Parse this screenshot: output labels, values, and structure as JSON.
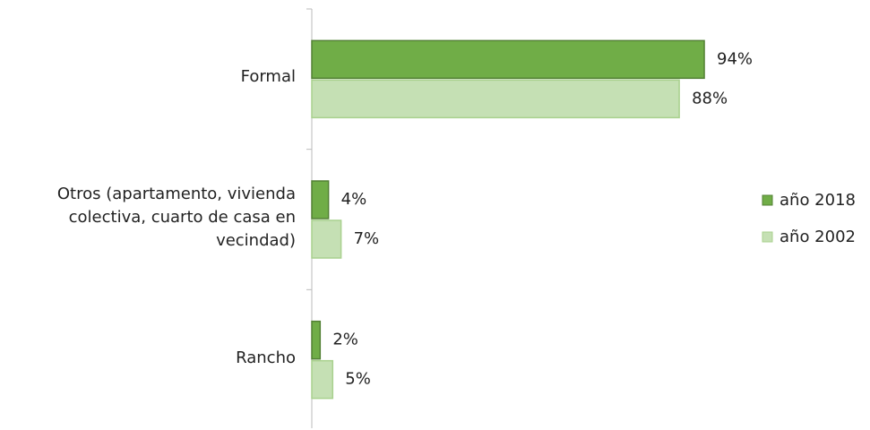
{
  "chart_data": {
    "type": "barh",
    "categories": [
      "Formal",
      "Otros (apartamento, vivienda colectiva, cuarto de casa en vecindad)",
      "Rancho"
    ],
    "series": [
      {
        "name": "año 2018",
        "color": "#70ad47",
        "border": "#538135",
        "values": [
          94,
          4,
          2
        ],
        "value_labels": [
          "94%",
          "4%",
          "2%"
        ]
      },
      {
        "name": "año 2002",
        "color": "#c5e0b4",
        "border": "#a9d18e",
        "values": [
          88,
          7,
          5
        ],
        "value_labels": [
          "88%",
          "7%",
          "5%"
        ]
      }
    ],
    "xlim": [
      0,
      100
    ],
    "legend": "right"
  }
}
